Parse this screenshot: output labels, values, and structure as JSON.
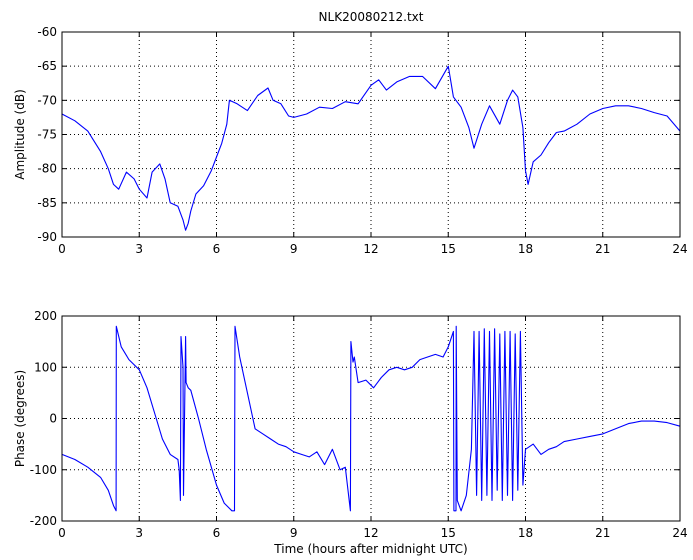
{
  "figure": {
    "title": "NLK20080212.txt"
  },
  "chart_data": [
    {
      "type": "line",
      "title": "NLK20080212.txt",
      "xlabel": "",
      "ylabel": "Amplitude (dB)",
      "xlim": [
        0,
        24
      ],
      "ylim": [
        -90,
        -60
      ],
      "xticks": [
        0,
        3,
        6,
        9,
        12,
        15,
        18,
        21,
        24
      ],
      "yticks": [
        -90,
        -85,
        -80,
        -75,
        -70,
        -65,
        -60
      ],
      "grid": true,
      "color": "#0000ff",
      "series": [
        {
          "x": [
            0,
            0.5,
            1,
            1.5,
            1.8,
            2.0,
            2.2,
            2.5,
            2.8,
            3.0,
            3.3,
            3.5,
            3.8,
            4.0,
            4.2,
            4.5,
            4.7,
            4.8,
            4.9,
            5.0,
            5.2,
            5.5,
            5.8,
            6.0,
            6.2,
            6.4,
            6.5,
            6.8,
            7.2,
            7.6,
            8.0,
            8.2,
            8.5,
            8.8,
            9.0,
            9.5,
            10.0,
            10.5,
            11.0,
            11.5,
            12.0,
            12.3,
            12.6,
            13.0,
            13.5,
            14.0,
            14.5,
            15.0,
            15.2,
            15.5,
            15.8,
            16.0,
            16.3,
            16.6,
            17.0,
            17.3,
            17.5,
            17.7,
            17.9,
            18.0,
            18.1,
            18.3,
            18.6,
            18.9,
            19.2,
            19.5,
            20.0,
            20.5,
            21.0,
            21.5,
            22.0,
            22.5,
            23.0,
            23.5,
            24.0
          ],
          "y": [
            -72,
            -73,
            -74.5,
            -77.5,
            -80,
            -82.3,
            -83,
            -80.5,
            -81.5,
            -83,
            -84.3,
            -80.5,
            -79.3,
            -81.5,
            -85,
            -85.5,
            -87.5,
            -89,
            -88,
            -86.2,
            -83.7,
            -82.5,
            -80.3,
            -78.3,
            -76.3,
            -73.5,
            -70,
            -70.5,
            -71.5,
            -69.3,
            -68.2,
            -70,
            -70.5,
            -72.3,
            -72.5,
            -72,
            -71,
            -71.2,
            -70.2,
            -70.5,
            -67.8,
            -67,
            -68.5,
            -67.3,
            -66.5,
            -66.5,
            -68.3,
            -65,
            -69.5,
            -71,
            -74,
            -77,
            -73.5,
            -70.8,
            -73.5,
            -70,
            -68.5,
            -69.5,
            -74,
            -80.3,
            -82.3,
            -79,
            -78,
            -76.2,
            -74.7,
            -74.5,
            -73.5,
            -72,
            -71.2,
            -70.8,
            -70.8,
            -71.2,
            -71.8,
            -72.3,
            -74.5
          ]
        }
      ]
    },
    {
      "type": "line",
      "title": "",
      "xlabel": "Time (hours after midnight UTC)",
      "ylabel": "Phase (degrees)",
      "xlim": [
        0,
        24
      ],
      "ylim": [
        -200,
        200
      ],
      "xticks": [
        0,
        3,
        6,
        9,
        12,
        15,
        18,
        21,
        24
      ],
      "yticks": [
        -200,
        -100,
        0,
        100,
        200
      ],
      "grid": true,
      "color": "#0000ff",
      "series": [
        {
          "x": [
            0,
            0.5,
            1.0,
            1.5,
            1.8,
            2.0,
            2.1,
            2.11,
            2.3,
            2.6,
            3.0,
            3.3,
            3.6,
            3.9,
            4.2,
            4.5,
            4.55,
            4.6,
            4.62,
            4.7,
            4.72,
            4.8,
            4.82,
            4.9,
            5.0,
            5.3,
            5.6,
            6.0,
            6.3,
            6.6,
            6.7,
            6.72,
            6.9,
            7.2,
            7.5,
            7.8,
            8.1,
            8.4,
            8.7,
            9.0,
            9.3,
            9.6,
            9.9,
            10.2,
            10.5,
            10.8,
            11.0,
            11.2,
            11.22,
            11.3,
            11.35,
            11.5,
            11.8,
            12.1,
            12.4,
            12.7,
            13.0,
            13.3,
            13.6,
            13.9,
            14.2,
            14.5,
            14.8,
            15.0,
            15.2,
            15.22,
            15.3,
            15.31,
            15.35,
            15.5,
            15.7,
            15.9,
            16.0,
            16.1,
            16.2,
            16.3,
            16.4,
            16.5,
            16.6,
            16.7,
            16.8,
            16.9,
            17.0,
            17.1,
            17.2,
            17.3,
            17.4,
            17.5,
            17.6,
            17.7,
            17.8,
            17.9,
            18.0,
            18.3,
            18.6,
            18.9,
            19.2,
            19.5,
            20.0,
            20.5,
            21.0,
            21.5,
            22.0,
            22.5,
            23.0,
            23.5,
            24.0
          ],
          "y": [
            -70,
            -80,
            -95,
            -115,
            -140,
            -170,
            -180,
            180,
            140,
            115,
            95,
            60,
            10,
            -40,
            -70,
            -80,
            -100,
            -160,
            160,
            100,
            -150,
            160,
            70,
            60,
            55,
            0,
            -60,
            -130,
            -165,
            -180,
            -180,
            180,
            120,
            50,
            -20,
            -30,
            -40,
            -50,
            -55,
            -65,
            -70,
            -75,
            -65,
            -90,
            -60,
            -100,
            -95,
            -180,
            150,
            110,
            120,
            70,
            75,
            60,
            80,
            95,
            100,
            95,
            100,
            115,
            120,
            125,
            120,
            140,
            170,
            -180,
            -180,
            180,
            -160,
            -180,
            -150,
            -60,
            170,
            -150,
            170,
            -160,
            175,
            -150,
            170,
            -160,
            175,
            -140,
            165,
            -160,
            170,
            -150,
            170,
            -160,
            165,
            -140,
            170,
            -130,
            -60,
            -50,
            -70,
            -60,
            -55,
            -45,
            -40,
            -35,
            -30,
            -20,
            -10,
            -5,
            -5,
            -8,
            -15
          ]
        }
      ]
    }
  ]
}
